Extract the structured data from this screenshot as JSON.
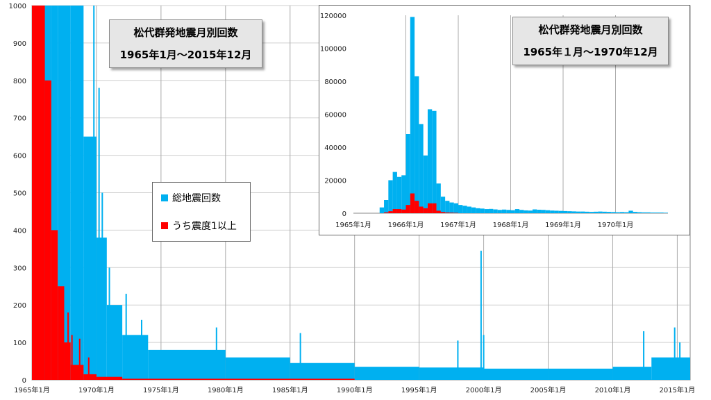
{
  "colors": {
    "total": "#00b0f0",
    "intensity1": "#ff0000",
    "grid": "#888888"
  },
  "chart_data": [
    {
      "type": "bar",
      "title_line1": "松代群発地震月別回数",
      "title_line2": "1965年1月～2015年12月",
      "xlabel": "",
      "ylabel": "",
      "ylim": [
        0,
        1000
      ],
      "y_ticks": [
        "0",
        "100",
        "200",
        "300",
        "400",
        "500",
        "600",
        "700",
        "800",
        "900",
        "1000"
      ],
      "x_ticks": [
        "1965年1月",
        "1970年1月",
        "1975年1月",
        "1980年1月",
        "1985年1月",
        "1990年1月",
        "1995年1月",
        "2000年1月",
        "2005年1月",
        "2010年1月",
        "2015年1月"
      ],
      "x_range_years": [
        1965.0,
        2016.0
      ],
      "grid": true,
      "legend_placement": "center-left",
      "series": [
        {
          "name": "総地震回数",
          "color": "#00b0f0",
          "segments": [
            [
              1965.0,
              1966.5,
              1000
            ],
            [
              1966.5,
              1967.0,
              1000
            ],
            [
              1967.0,
              1968.0,
              1000
            ],
            [
              1968.0,
              1969.0,
              1000
            ],
            [
              1969.0,
              1970.0,
              650
            ],
            [
              1970.0,
              1970.8,
              380
            ],
            [
              1970.8,
              1972.0,
              200
            ],
            [
              1972.0,
              1974.0,
              120
            ],
            [
              1974.0,
              1980.0,
              80
            ],
            [
              1980.0,
              1985.0,
              60
            ],
            [
              1985.0,
              1990.0,
              45
            ],
            [
              1990.0,
              1995.0,
              35
            ],
            [
              1995.0,
              2000.0,
              33
            ],
            [
              2000.0,
              2005.0,
              30
            ],
            [
              2005.0,
              2010.0,
              30
            ],
            [
              2010.0,
              2013.0,
              35
            ],
            [
              2013.0,
              2016.0,
              60
            ]
          ],
          "spikes": [
            [
              1969.8,
              1000
            ],
            [
              1970.2,
              780
            ],
            [
              1970.45,
              500
            ],
            [
              1971.0,
              300
            ],
            [
              1972.3,
              230
            ],
            [
              1973.5,
              160
            ],
            [
              1979.3,
              140
            ],
            [
              1985.8,
              125
            ],
            [
              1998.0,
              105
            ],
            [
              1999.8,
              345
            ],
            [
              2000.0,
              120
            ],
            [
              2012.4,
              130
            ],
            [
              2014.8,
              140
            ],
            [
              2015.2,
              100
            ]
          ]
        },
        {
          "name": "うち震度1以上",
          "color": "#ff0000",
          "segments": [
            [
              1965.0,
              1966.0,
              1000
            ],
            [
              1966.0,
              1966.5,
              800
            ],
            [
              1966.5,
              1967.0,
              400
            ],
            [
              1967.0,
              1967.5,
              250
            ],
            [
              1967.5,
              1968.0,
              100
            ],
            [
              1968.0,
              1969.0,
              40
            ],
            [
              1969.0,
              1970.0,
              15
            ],
            [
              1970.0,
              1972.0,
              8
            ],
            [
              1972.0,
              1990.0,
              3
            ]
          ],
          "spikes": [
            [
              1965.1,
              300
            ],
            [
              1967.8,
              180
            ],
            [
              1968.1,
              120
            ],
            [
              1968.7,
              110
            ],
            [
              1969.4,
              60
            ]
          ]
        }
      ]
    },
    {
      "type": "bar",
      "title_line1": "松代群発地震月別回数",
      "title_line2": "1965年１月～1970年12月",
      "xlabel": "",
      "ylabel": "",
      "ylim": [
        0,
        120000
      ],
      "y_ticks": [
        "0",
        "20000",
        "40000",
        "60000",
        "80000",
        "100000",
        "120000"
      ],
      "x_ticks": [
        "1965年1月",
        "1966年1月",
        "1967年1月",
        "1968年1月",
        "1969年1月",
        "1970年1月"
      ],
      "x_range_years": [
        1965.0,
        1971.0
      ],
      "grid": true,
      "series": [
        {
          "name": "総地震回数",
          "color": "#00b0f0",
          "x": [
            "1965-07",
            "1965-08",
            "1965-09",
            "1965-10",
            "1965-11",
            "1965-12",
            "1966-01",
            "1966-02",
            "1966-03",
            "1966-04",
            "1966-05",
            "1966-06",
            "1966-07",
            "1966-08",
            "1966-09",
            "1966-10",
            "1966-11",
            "1966-12",
            "1967-01",
            "1967-02",
            "1967-03",
            "1967-04",
            "1967-05",
            "1967-06",
            "1967-07",
            "1967-08",
            "1967-09",
            "1967-10",
            "1967-11",
            "1967-12",
            "1968-01",
            "1968-02",
            "1968-03",
            "1968-04",
            "1968-05",
            "1968-06",
            "1968-07",
            "1968-08",
            "1968-09",
            "1968-10",
            "1968-11",
            "1968-12",
            "1969-01",
            "1969-02",
            "1969-03",
            "1969-04",
            "1969-05",
            "1969-06",
            "1969-07",
            "1969-08",
            "1969-09",
            "1969-10",
            "1969-11",
            "1969-12",
            "1970-01",
            "1970-02",
            "1970-03",
            "1970-04",
            "1970-05",
            "1970-06",
            "1970-07",
            "1970-08",
            "1970-09",
            "1970-10",
            "1970-11",
            "1970-12"
          ],
          "values": [
            3500,
            8000,
            20000,
            25000,
            22000,
            23000,
            48000,
            119000,
            83000,
            54000,
            35000,
            63000,
            62000,
            18000,
            10000,
            7500,
            6500,
            6000,
            5000,
            4500,
            4000,
            3500,
            3000,
            2800,
            2500,
            2600,
            2300,
            2000,
            2200,
            2000,
            1800,
            2500,
            2000,
            1700,
            1600,
            2300,
            2100,
            2000,
            1800,
            1600,
            1500,
            1400,
            1300,
            1200,
            1100,
            1000,
            1000,
            900,
            800,
            900,
            1000,
            900,
            800,
            700,
            600,
            700,
            600,
            1500,
            800,
            600,
            500,
            500,
            400,
            400,
            400,
            300
          ]
        },
        {
          "name": "うち震度1以上",
          "color": "#ff0000",
          "x": [
            "1965-08",
            "1965-09",
            "1965-10",
            "1965-11",
            "1965-12",
            "1966-01",
            "1966-02",
            "1966-03",
            "1966-04",
            "1966-05",
            "1966-06",
            "1966-07",
            "1966-08",
            "1966-09",
            "1966-10",
            "1966-11",
            "1966-12"
          ],
          "values": [
            500,
            1200,
            2500,
            2500,
            2200,
            5000,
            12000,
            7500,
            4000,
            3000,
            6000,
            6000,
            1500,
            700,
            400,
            300,
            200
          ]
        }
      ]
    }
  ],
  "legend": {
    "items": [
      {
        "label": "総地震回数"
      },
      {
        "label": "うち震度1以上"
      }
    ]
  }
}
